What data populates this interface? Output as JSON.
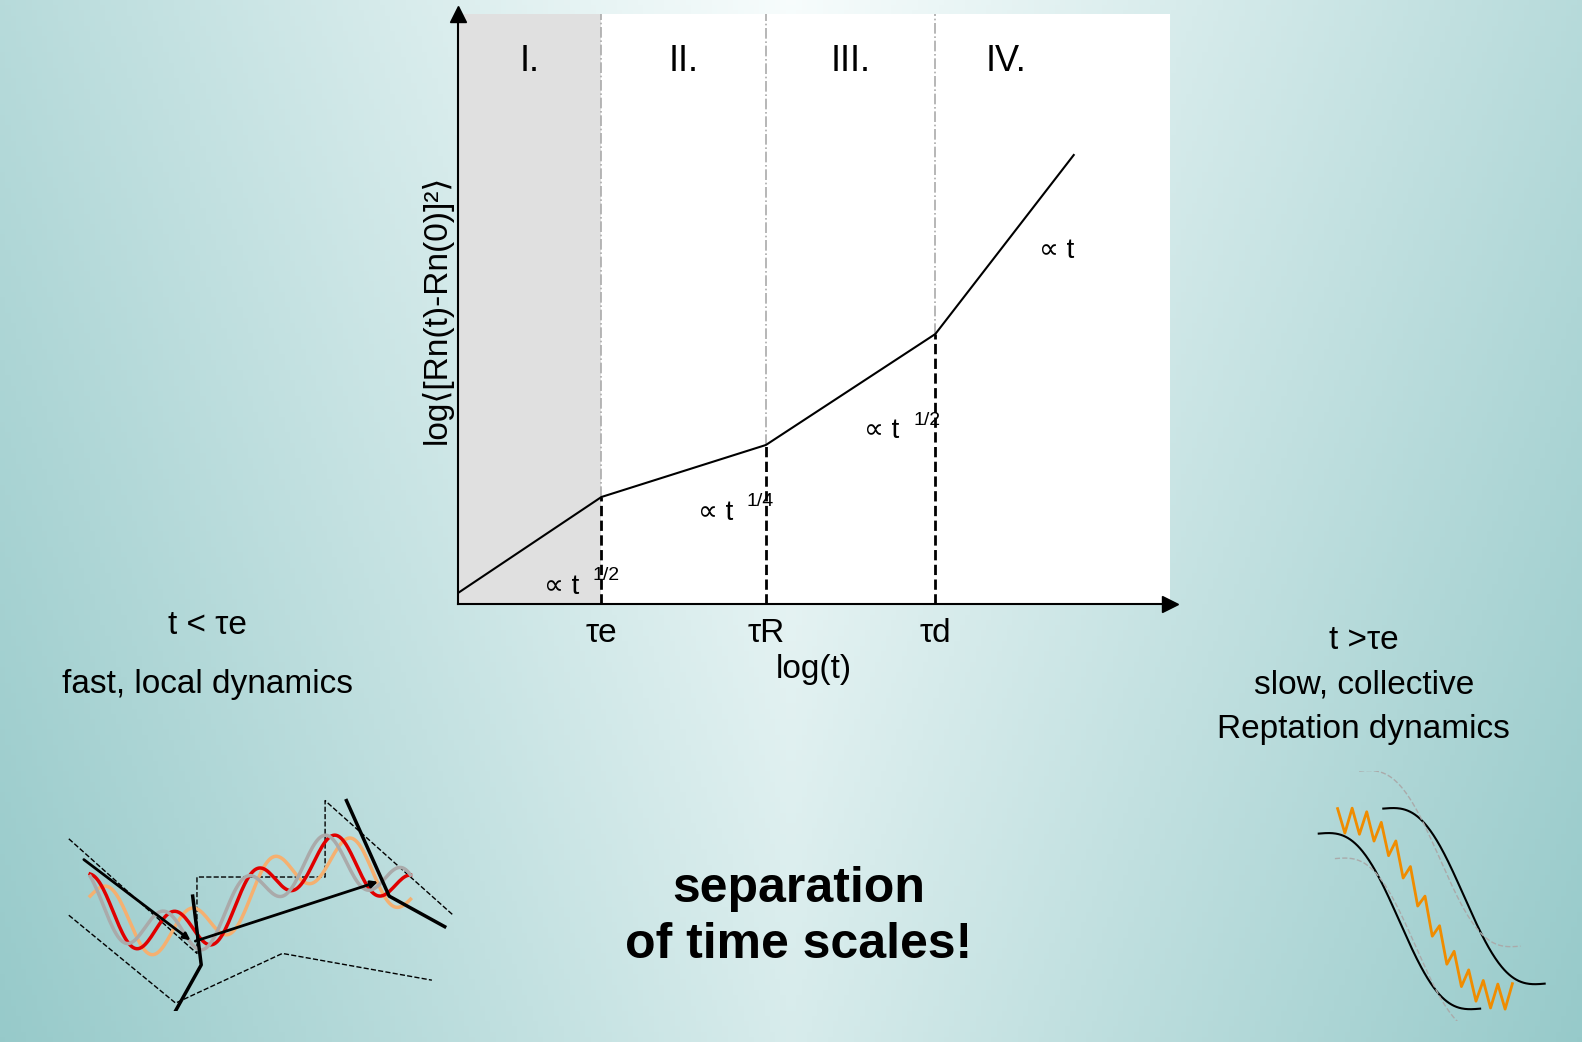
{
  "chart_data": {
    "type": "line",
    "x": [
      0,
      1.43,
      3.07,
      4.76,
      6.14
    ],
    "values": [
      0.11,
      1.07,
      1.59,
      2.7,
      4.49
    ],
    "color": "#000000",
    "xlim": [
      0,
      7.1
    ],
    "ylim": [
      0,
      5.9
    ],
    "xticks": [
      {
        "value": 1.43,
        "label": "τe"
      },
      {
        "value": 3.07,
        "label": "τR"
      },
      {
        "value": 4.76,
        "label": "τd"
      }
    ],
    "yticks": [],
    "tick_labels": "x",
    "xlabel": "log(t)",
    "ylabel": "log⟨[Rn(t)-Rn(0)]²⟩",
    "regions": [
      {
        "label": "I.",
        "start": 0,
        "end": 1.43,
        "color": "#e0e0e0"
      },
      {
        "label": "II.",
        "start": 1.43,
        "end": 3.07,
        "color": "#ffffff"
      },
      {
        "label": "III.",
        "start": 3.07,
        "end": 4.76,
        "color": "#ffffff"
      },
      {
        "label": "IV.",
        "start": 4.76,
        "end": 6.17,
        "color": "#ffffff"
      }
    ],
    "segment_labels": [
      {
        "base": "∝ t",
        "exponent": "1/2"
      },
      {
        "base": "∝ t",
        "exponent": "1/4"
      },
      {
        "base": "∝ t",
        "exponent": "1/2"
      },
      {
        "base": "∝ t"
      }
    ],
    "notes": {
      "left": [
        "t < τe",
        "fast, local dynamics"
      ],
      "right": [
        "t >τe",
        "slow, collective",
        "Reptation dynamics"
      ],
      "center": "separation\nof time scales!"
    }
  }
}
